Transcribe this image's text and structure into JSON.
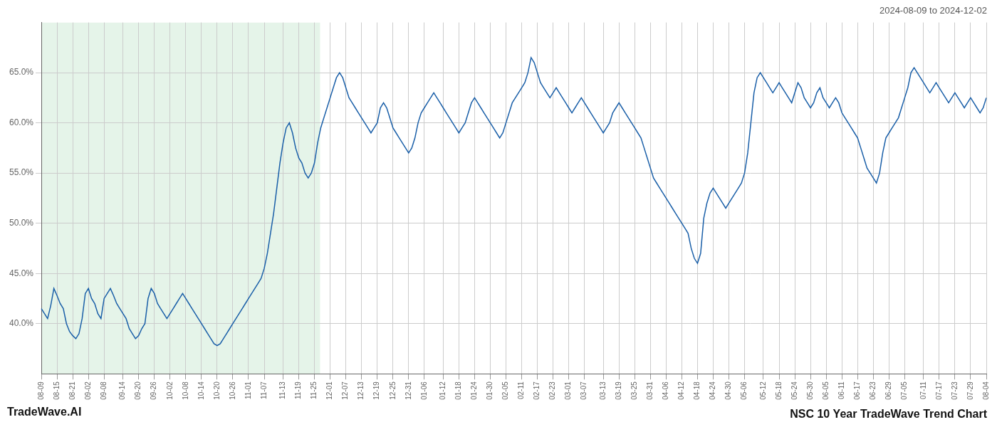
{
  "chart_data": {
    "type": "line",
    "title": "NSC 10 Year TradeWave Trend Chart",
    "subtitle": "2024-08-09 to 2024-12-02",
    "annotations": [
      "TradeWave.AI"
    ],
    "color": "#1a5fa8",
    "grid": true,
    "shaded_range": [
      0,
      88.795
    ],
    "shade_color": "#d4edda",
    "ylim": [
      35.0,
      70.0
    ],
    "yticks": [
      {
        "value": 40.0,
        "label": "40.0%"
      },
      {
        "value": 45.0,
        "label": "45.0%"
      },
      {
        "value": 50.0,
        "label": "50.0%"
      },
      {
        "value": 55.0,
        "label": "55.0%"
      },
      {
        "value": 60.0,
        "label": "60.0%"
      },
      {
        "value": 65.0,
        "label": "65.0%"
      }
    ],
    "categories": [
      "08-09",
      null,
      null,
      null,
      null,
      "08-15",
      null,
      null,
      null,
      null,
      "08-21",
      null,
      null,
      null,
      null,
      "09-02",
      null,
      null,
      null,
      null,
      "09-08",
      null,
      null,
      null,
      null,
      null,
      "09-14",
      null,
      null,
      null,
      null,
      "09-20",
      null,
      null,
      null,
      null,
      "09-26",
      null,
      null,
      null,
      null,
      "10-02",
      null,
      null,
      null,
      null,
      "10-08",
      null,
      null,
      null,
      null,
      "10-14",
      null,
      null,
      null,
      null,
      "10-20",
      null,
      null,
      null,
      null,
      "10-26",
      null,
      null,
      null,
      null,
      "11-01",
      null,
      null,
      null,
      null,
      "11-07",
      null,
      null,
      null,
      null,
      null,
      "11-13",
      null,
      null,
      null,
      null,
      "11-19",
      null,
      null,
      null,
      null,
      "11-25",
      null,
      null,
      null,
      null,
      "12-01",
      null,
      null,
      null,
      null,
      "12-07",
      null,
      null,
      null,
      null,
      "12-13",
      null,
      null,
      null,
      null,
      "12-19",
      null,
      null,
      null,
      null,
      "12-25",
      null,
      null,
      null,
      null,
      "12-31",
      null,
      null,
      null,
      null,
      "01-06",
      null,
      null,
      null,
      null,
      null,
      "01-12",
      null,
      null,
      null,
      null,
      "01-18",
      null,
      null,
      null,
      null,
      "01-24",
      null,
      null,
      null,
      null,
      "01-30",
      null,
      null,
      null,
      null,
      "02-05",
      null,
      null,
      null,
      null,
      "02-11",
      null,
      null,
      null,
      null,
      "02-17",
      null,
      null,
      null,
      null,
      "02-23",
      null,
      null,
      null,
      null,
      "03-01",
      null,
      null,
      null,
      null,
      "03-07",
      null,
      null,
      null,
      null,
      null,
      "03-13",
      null,
      null,
      null,
      null,
      "03-19",
      null,
      null,
      null,
      null,
      "03-25",
      null,
      null,
      null,
      null,
      "03-31",
      null,
      null,
      null,
      null,
      "04-06",
      null,
      null,
      null,
      null,
      "04-12",
      null,
      null,
      null,
      null,
      "04-18",
      null,
      null,
      null,
      null,
      "04-24",
      null,
      null,
      null,
      null,
      "04-30",
      null,
      null,
      null,
      null,
      "05-06",
      null,
      null,
      null,
      null,
      null,
      "05-12",
      null,
      null,
      null,
      null,
      "05-18",
      null,
      null,
      null,
      null,
      "05-24",
      null,
      null,
      null,
      null,
      "05-30",
      null,
      null,
      null,
      null,
      "06-05",
      null,
      null,
      null,
      null,
      "06-11",
      null,
      null,
      null,
      null,
      "06-17",
      null,
      null,
      null,
      null,
      "06-23",
      null,
      null,
      null,
      null,
      "06-29",
      null,
      null,
      null,
      null,
      "07-05",
      null,
      null,
      null,
      null,
      null,
      "07-11",
      null,
      null,
      null,
      null,
      "07-17",
      null,
      null,
      null,
      null,
      "07-23",
      null,
      null,
      null,
      null,
      "07-29",
      null,
      null,
      null,
      null,
      "08-04"
    ],
    "values": [
      41.5,
      41.0,
      40.5,
      41.8,
      43.5,
      42.8,
      42.0,
      41.5,
      40.0,
      39.2,
      38.8,
      38.5,
      39.0,
      40.5,
      43.0,
      43.5,
      42.5,
      42.0,
      41.0,
      40.5,
      42.5,
      43.0,
      43.5,
      42.8,
      42.0,
      41.5,
      41.0,
      40.5,
      39.5,
      39.0,
      38.5,
      38.8,
      39.5,
      40.0,
      42.5,
      43.5,
      43.0,
      42.0,
      41.5,
      41.0,
      40.5,
      41.0,
      41.5,
      42.0,
      42.5,
      43.0,
      42.5,
      42.0,
      41.5,
      41.0,
      40.5,
      40.0,
      39.5,
      39.0,
      38.5,
      38.0,
      37.8,
      38.0,
      38.5,
      39.0,
      39.5,
      40.0,
      40.5,
      41.0,
      41.5,
      42.0,
      42.5,
      43.0,
      43.5,
      44.0,
      44.5,
      45.5,
      47.0,
      49.0,
      51.0,
      53.5,
      56.0,
      58.0,
      59.5,
      60.0,
      59.0,
      57.5,
      56.5,
      56.0,
      55.0,
      54.5,
      55.0,
      56.0,
      58.0,
      59.5,
      60.5,
      61.5,
      62.5,
      63.5,
      64.5,
      65.0,
      64.5,
      63.5,
      62.5,
      62.0,
      61.5,
      61.0,
      60.5,
      60.0,
      59.5,
      59.0,
      59.5,
      60.0,
      61.5,
      62.0,
      61.5,
      60.5,
      59.5,
      59.0,
      58.5,
      58.0,
      57.5,
      57.0,
      57.5,
      58.5,
      60.0,
      61.0,
      61.5,
      62.0,
      62.5,
      63.0,
      62.5,
      62.0,
      61.5,
      61.0,
      60.5,
      60.0,
      59.5,
      59.0,
      59.5,
      60.0,
      61.0,
      62.0,
      62.5,
      62.0,
      61.5,
      61.0,
      60.5,
      60.0,
      59.5,
      59.0,
      58.5,
      59.0,
      60.0,
      61.0,
      62.0,
      62.5,
      63.0,
      63.5,
      64.0,
      65.0,
      66.5,
      66.0,
      65.0,
      64.0,
      63.5,
      63.0,
      62.5,
      63.0,
      63.5,
      63.0,
      62.5,
      62.0,
      61.5,
      61.0,
      61.5,
      62.0,
      62.5,
      62.0,
      61.5,
      61.0,
      60.5,
      60.0,
      59.5,
      59.0,
      59.5,
      60.0,
      61.0,
      61.5,
      62.0,
      61.5,
      61.0,
      60.5,
      60.0,
      59.5,
      59.0,
      58.5,
      57.5,
      56.5,
      55.5,
      54.5,
      54.0,
      53.5,
      53.0,
      52.5,
      52.0,
      51.5,
      51.0,
      50.5,
      50.0,
      49.5,
      49.0,
      47.5,
      46.5,
      46.0,
      47.0,
      50.5,
      52.0,
      53.0,
      53.5,
      53.0,
      52.5,
      52.0,
      51.5,
      52.0,
      52.5,
      53.0,
      53.5,
      54.0,
      55.0,
      57.0,
      60.0,
      63.0,
      64.5,
      65.0,
      64.5,
      64.0,
      63.5,
      63.0,
      63.5,
      64.0,
      63.5,
      63.0,
      62.5,
      62.0,
      63.0,
      64.0,
      63.5,
      62.5,
      62.0,
      61.5,
      62.0,
      63.0,
      63.5,
      62.5,
      62.0,
      61.5,
      62.0,
      62.5,
      62.0,
      61.0,
      60.5,
      60.0,
      59.5,
      59.0,
      58.5,
      57.5,
      56.5,
      55.5,
      55.0,
      54.5,
      54.0,
      55.0,
      57.0,
      58.5,
      59.0,
      59.5,
      60.0,
      60.5,
      61.5,
      62.5,
      63.5,
      65.0,
      65.5,
      65.0,
      64.5,
      64.0,
      63.5,
      63.0,
      63.5,
      64.0,
      63.5,
      63.0,
      62.5,
      62.0,
      62.5,
      63.0,
      62.5,
      62.0,
      61.5,
      62.0,
      62.5,
      62.0,
      61.5,
      61.0,
      61.5,
      62.5
    ]
  }
}
